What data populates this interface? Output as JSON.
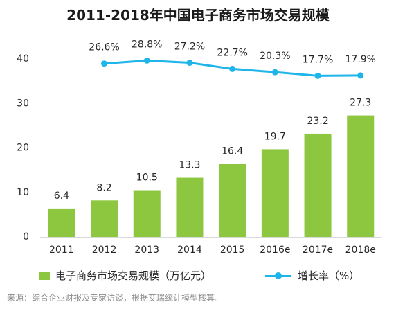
{
  "source_note": "来源：综合企业财报及专家访谈，根据艾瑞统计模型核算。",
  "chart_data": {
    "type": "bar",
    "title": "2011-2018年中国电子商务市场交易规模",
    "categories": [
      "2011",
      "2012",
      "2013",
      "2014",
      "2015",
      "2016e",
      "2017e",
      "2018e"
    ],
    "series": [
      {
        "name": "电子商务市场交易规模（万亿元）",
        "type": "bar",
        "axis": "primary",
        "color": "#8dc63f",
        "values": [
          6.4,
          8.2,
          10.5,
          13.3,
          16.4,
          19.7,
          23.2,
          27.3
        ]
      },
      {
        "name": "增长率（%）",
        "type": "line",
        "axis": "secondary",
        "color": "#1fb5e8",
        "label_suffix": "%",
        "values": [
          null,
          26.6,
          28.8,
          27.2,
          22.7,
          20.3,
          17.7,
          17.9
        ]
      }
    ],
    "ylim": [
      0,
      40
    ],
    "yticks": [
      0,
      10,
      20,
      30,
      40
    ],
    "y2lim": [
      -100,
      30
    ],
    "grid": false,
    "legend": "bottom"
  }
}
